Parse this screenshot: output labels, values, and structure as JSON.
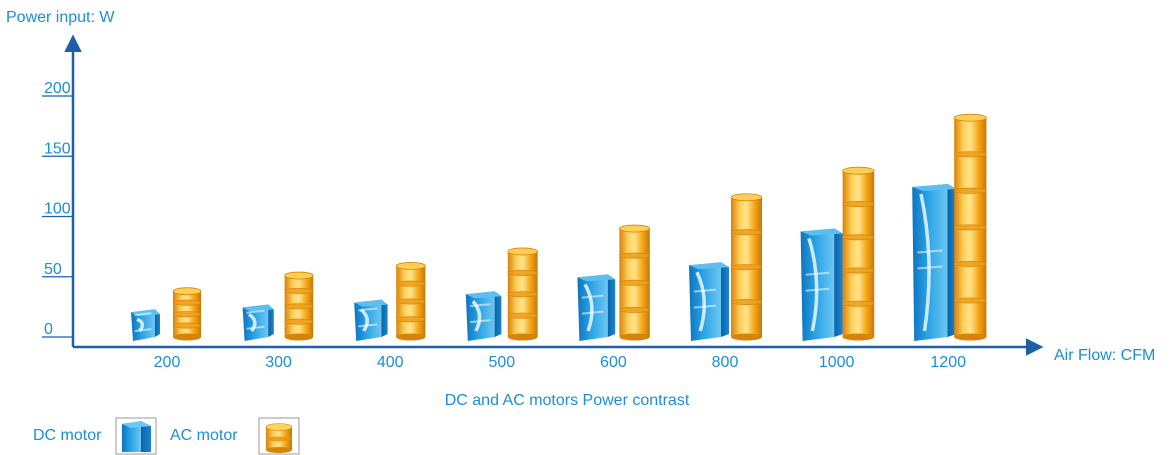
{
  "chart_data": {
    "type": "bar",
    "title": "DC and AC motors Power contrast",
    "xlabel": "Air Flow: CFM",
    "ylabel": "Power input: W",
    "ylim": [
      0,
      200
    ],
    "yticks": [
      "0",
      "50",
      "100",
      "150",
      "200"
    ],
    "categories": [
      "200",
      "300",
      "400",
      "500",
      "600",
      "800",
      "1000",
      "1200"
    ],
    "series": [
      {
        "name": "DC motor",
        "values": [
          23,
          27,
          31,
          38,
          52,
          62,
          90,
          127
        ]
      },
      {
        "name": "AC motor",
        "values": [
          38,
          51,
          59,
          71,
          90,
          116,
          138,
          182
        ]
      }
    ],
    "legend_position": "bottom-left",
    "grid": false
  },
  "colors": {
    "axis": "#1f5fa8",
    "text": "#1a8fd6",
    "dc_main": "#1c8fd8",
    "dc_light": "#7fd0f7",
    "ac_main": "#f2a20f",
    "ac_light": "#ffe08a",
    "ac_ring": "#d7830a"
  }
}
